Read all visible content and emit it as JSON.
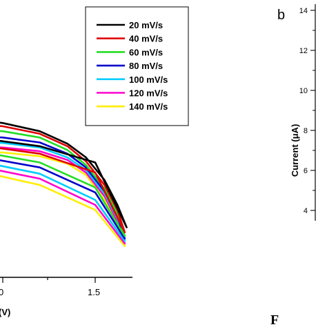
{
  "chart_data": [
    {
      "type": "line",
      "title": "",
      "xlabel_visible_fragment": "(V)",
      "x_ticks": [
        "0",
        "1.5"
      ],
      "xlim": [
        0.4,
        1.75
      ],
      "ylim": [
        0,
        1
      ],
      "legend_position": "top-right",
      "series": [
        {
          "name": "20 mV/s",
          "color": "#000000",
          "points": [
            [
              0.4,
              0.655
            ],
            [
              0.7,
              0.642
            ],
            [
              1.0,
              0.618
            ],
            [
              1.2,
              0.585
            ],
            [
              1.35,
              0.535
            ],
            [
              1.45,
              0.48
            ],
            [
              1.55,
              0.39
            ],
            [
              1.62,
              0.29
            ],
            [
              1.67,
              0.2
            ]
          ],
          "return_points": [
            [
              1.67,
              0.2
            ],
            [
              1.5,
              0.46
            ],
            [
              1.2,
              0.525
            ],
            [
              0.9,
              0.555
            ],
            [
              0.6,
              0.575
            ],
            [
              0.4,
              0.585
            ]
          ]
        },
        {
          "name": "40 mV/s",
          "color": "#e00000",
          "points": [
            [
              0.4,
              0.635
            ],
            [
              0.7,
              0.625
            ],
            [
              1.0,
              0.605
            ],
            [
              1.2,
              0.575
            ],
            [
              1.35,
              0.525
            ],
            [
              1.45,
              0.465
            ],
            [
              1.55,
              0.37
            ],
            [
              1.62,
              0.27
            ],
            [
              1.66,
              0.18
            ]
          ],
          "return_points": [
            [
              1.66,
              0.18
            ],
            [
              1.5,
              0.42
            ],
            [
              1.2,
              0.495
            ],
            [
              0.9,
              0.525
            ],
            [
              0.6,
              0.545
            ],
            [
              0.4,
              0.555
            ]
          ]
        },
        {
          "name": "60 mV/s",
          "color": "#22dd22",
          "points": [
            [
              0.4,
              0.605
            ],
            [
              0.7,
              0.6
            ],
            [
              1.0,
              0.585
            ],
            [
              1.2,
              0.56
            ],
            [
              1.35,
              0.51
            ],
            [
              1.45,
              0.45
            ],
            [
              1.55,
              0.355
            ],
            [
              1.62,
              0.255
            ],
            [
              1.66,
              0.165
            ]
          ],
          "return_points": [
            [
              1.66,
              0.165
            ],
            [
              1.5,
              0.36
            ],
            [
              1.2,
              0.46
            ],
            [
              0.9,
              0.5
            ],
            [
              0.6,
              0.52
            ],
            [
              0.4,
              0.53
            ]
          ]
        },
        {
          "name": "80 mV/s",
          "color": "#0000cc",
          "points": [
            [
              0.4,
              0.575
            ],
            [
              0.7,
              0.57
            ],
            [
              1.0,
              0.56
            ],
            [
              1.2,
              0.54
            ],
            [
              1.35,
              0.495
            ],
            [
              1.45,
              0.44
            ],
            [
              1.55,
              0.345
            ],
            [
              1.62,
              0.245
            ],
            [
              1.66,
              0.155
            ]
          ],
          "return_points": [
            [
              1.66,
              0.155
            ],
            [
              1.5,
              0.34
            ],
            [
              1.2,
              0.44
            ],
            [
              0.9,
              0.48
            ],
            [
              0.6,
              0.5
            ],
            [
              0.4,
              0.51
            ]
          ]
        },
        {
          "name": "100 mV/s",
          "color": "#00ccff",
          "points": [
            [
              0.4,
              0.545
            ],
            [
              0.7,
              0.545
            ],
            [
              1.0,
              0.538
            ],
            [
              1.2,
              0.52
            ],
            [
              1.35,
              0.48
            ],
            [
              1.45,
              0.43
            ],
            [
              1.55,
              0.335
            ],
            [
              1.62,
              0.235
            ],
            [
              1.66,
              0.145
            ]
          ],
          "return_points": [
            [
              1.66,
              0.145
            ],
            [
              1.5,
              0.31
            ],
            [
              1.2,
              0.415
            ],
            [
              0.9,
              0.46
            ],
            [
              0.6,
              0.48
            ],
            [
              0.4,
              0.49
            ]
          ]
        },
        {
          "name": "120 mV/s",
          "color": "#ff00cc",
          "points": [
            [
              0.4,
              0.525
            ],
            [
              0.7,
              0.525
            ],
            [
              1.0,
              0.52
            ],
            [
              1.2,
              0.505
            ],
            [
              1.35,
              0.47
            ],
            [
              1.45,
              0.42
            ],
            [
              1.55,
              0.325
            ],
            [
              1.62,
              0.225
            ],
            [
              1.66,
              0.135
            ]
          ],
          "return_points": [
            [
              1.66,
              0.135
            ],
            [
              1.5,
              0.29
            ],
            [
              1.2,
              0.395
            ],
            [
              0.9,
              0.44
            ],
            [
              0.6,
              0.46
            ],
            [
              0.4,
              0.47
            ]
          ]
        },
        {
          "name": "140 mV/s",
          "color": "#ffee00",
          "points": [
            [
              0.4,
              0.505
            ],
            [
              0.7,
              0.505
            ],
            [
              1.0,
              0.5
            ],
            [
              1.2,
              0.485
            ],
            [
              1.35,
              0.455
            ],
            [
              1.45,
              0.41
            ],
            [
              1.55,
              0.31
            ],
            [
              1.62,
              0.21
            ],
            [
              1.66,
              0.125
            ]
          ],
          "return_points": [
            [
              1.66,
              0.125
            ],
            [
              1.5,
              0.27
            ],
            [
              1.2,
              0.37
            ],
            [
              0.9,
              0.42
            ],
            [
              0.6,
              0.44
            ],
            [
              0.4,
              0.45
            ]
          ]
        }
      ]
    },
    {
      "type": "line",
      "panel_label": "b",
      "ylabel": "Current (μA)",
      "y_ticks": [
        "4",
        "6",
        "8",
        "10",
        "12",
        "14"
      ],
      "ylim": [
        3,
        14
      ],
      "series": []
    }
  ],
  "bottom_letter": "F"
}
